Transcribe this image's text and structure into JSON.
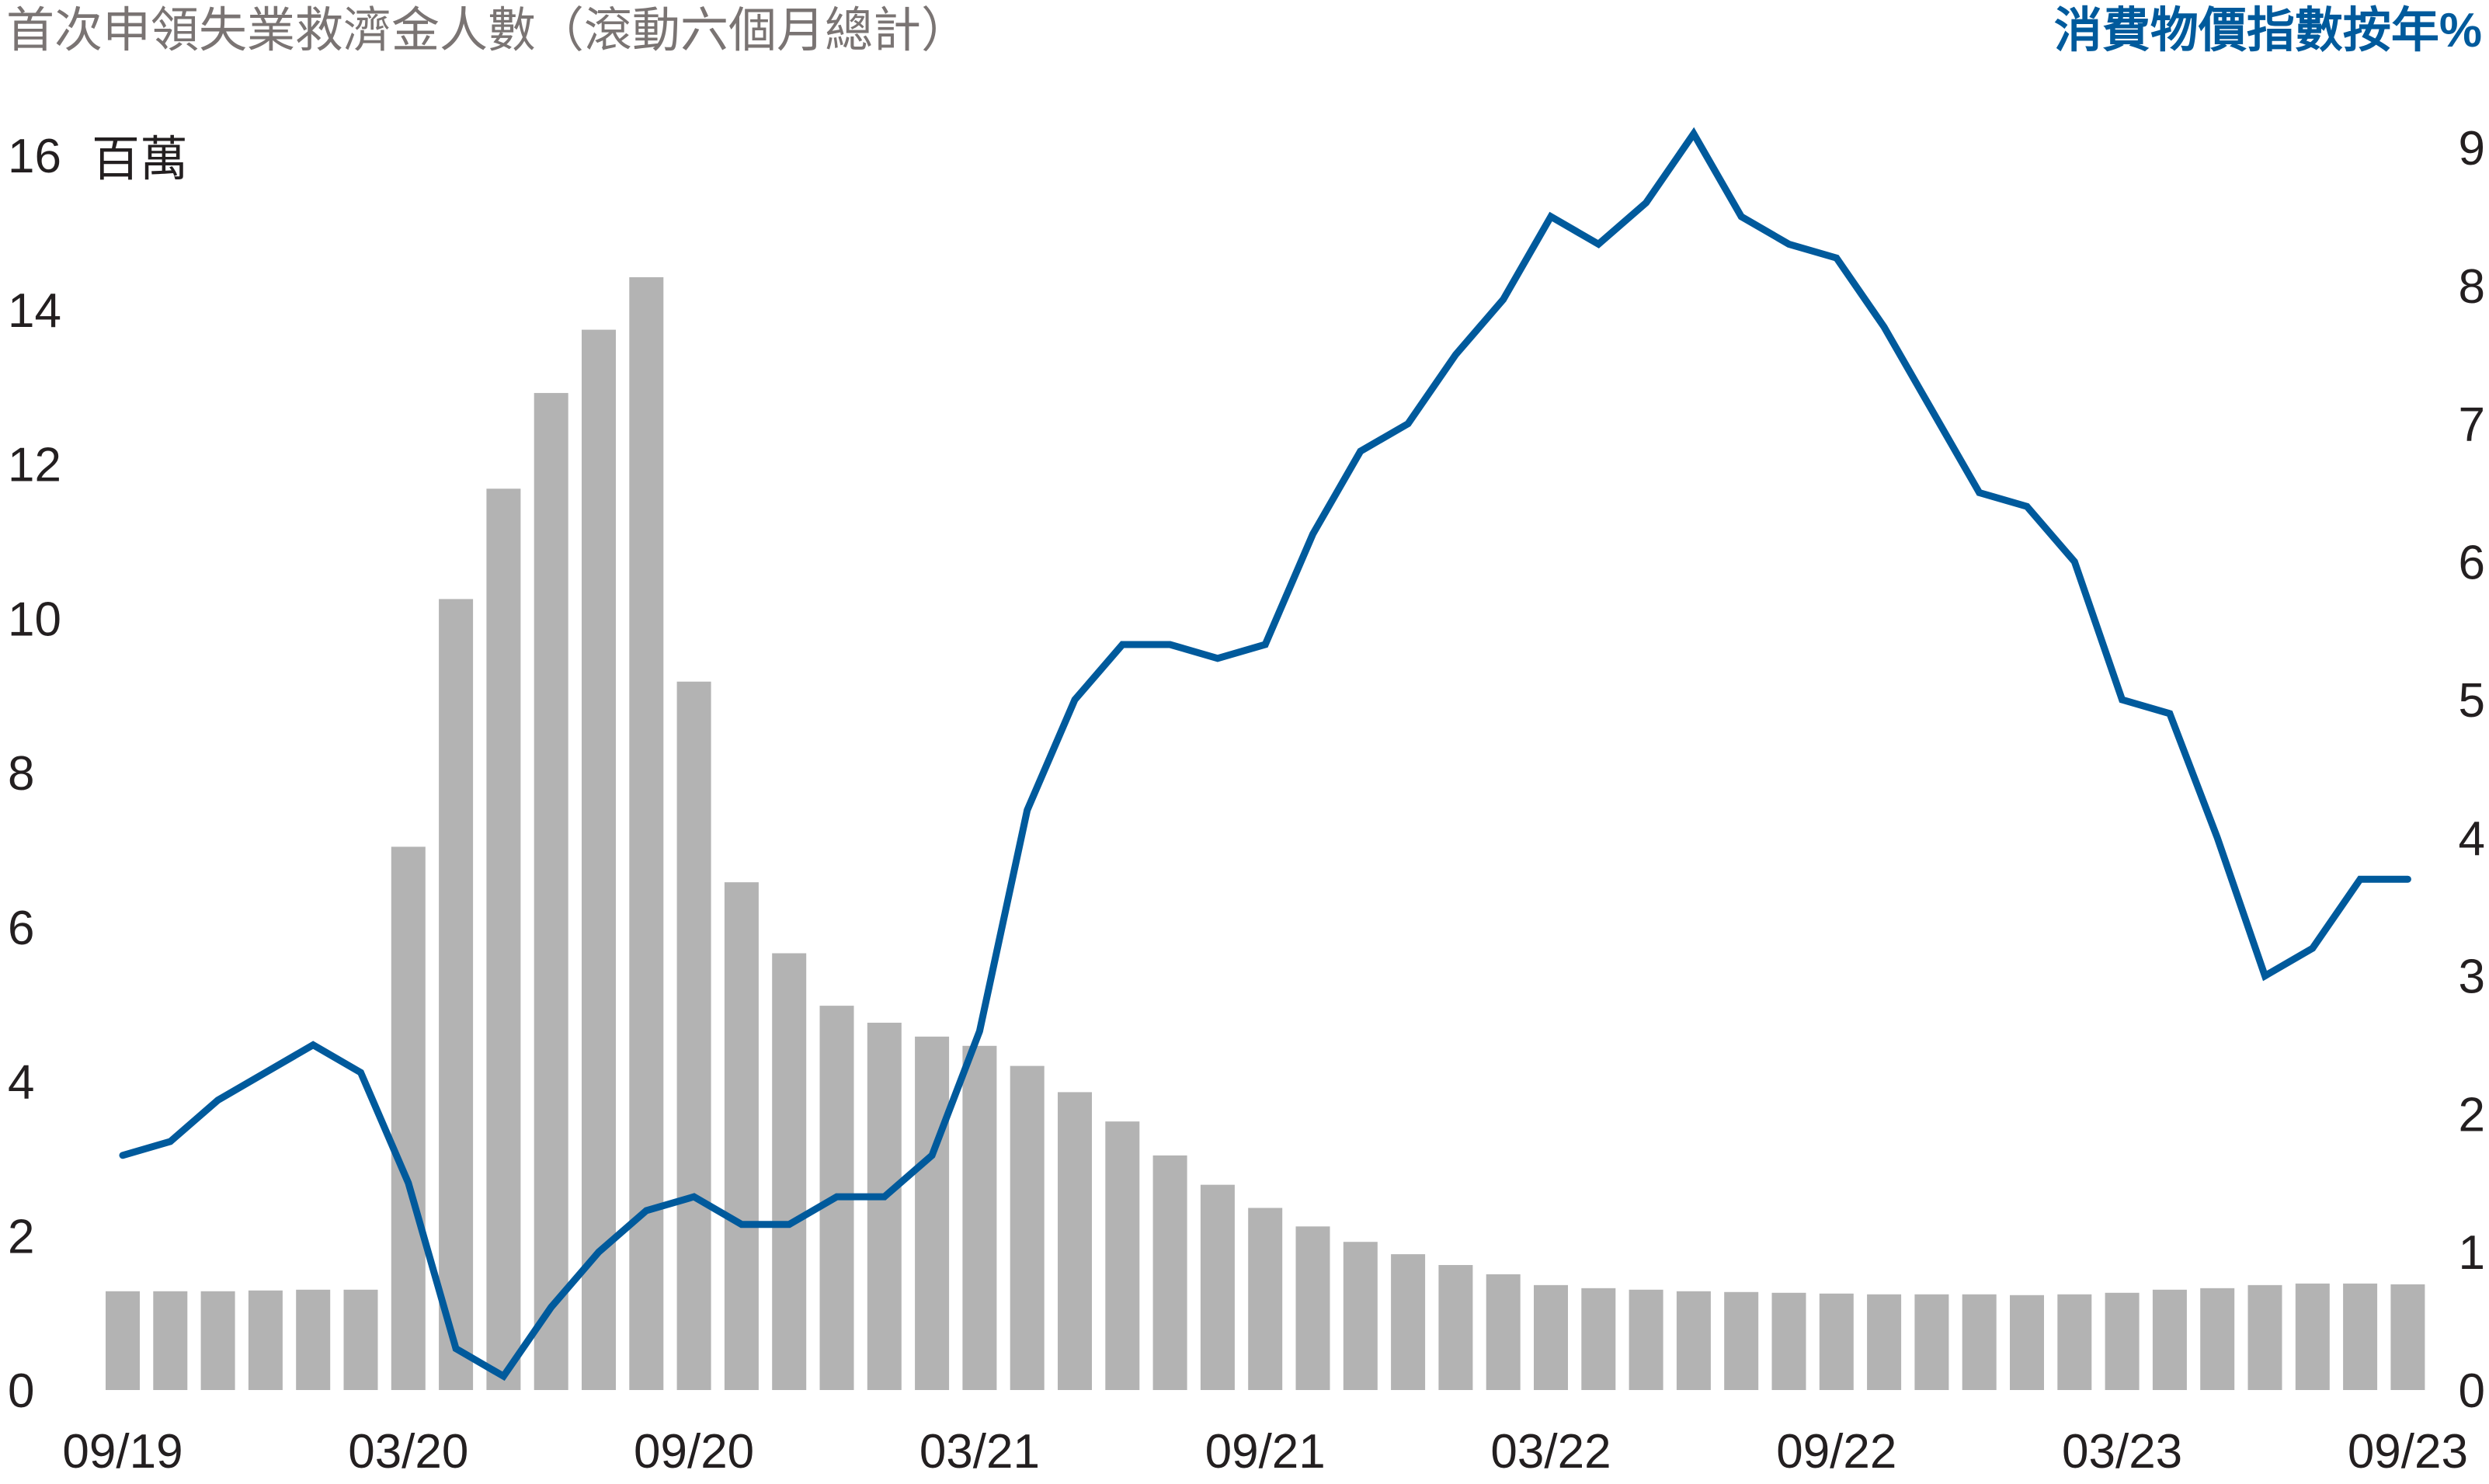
{
  "chart_data": {
    "type": "bar",
    "title_left": "首次申領失業救濟金人數（滾動六個月總計）",
    "title_right": "消費物價指數按年%",
    "left_axis": {
      "unit": "百萬",
      "ticks": [
        "0",
        "2",
        "4",
        "6",
        "8",
        "10",
        "12",
        "14",
        "16"
      ],
      "ylim": [
        0,
        16
      ]
    },
    "right_axis": {
      "ticks": [
        "0",
        "1",
        "2",
        "3",
        "4",
        "5",
        "6",
        "7",
        "8",
        "9"
      ],
      "ylim": [
        0,
        9
      ]
    },
    "x_tick_labels": [
      "09/19",
      "03/20",
      "09/20",
      "03/21",
      "09/21",
      "03/22",
      "09/22",
      "03/23",
      "09/23"
    ],
    "grid": false,
    "series": [
      {
        "kind": "bar",
        "axis": "left",
        "color": "#b3b3b3",
        "values": [
          1.28,
          1.28,
          1.28,
          1.29,
          1.3,
          1.3,
          7.04,
          10.25,
          11.68,
          12.92,
          13.74,
          14.42,
          9.18,
          6.58,
          5.66,
          4.98,
          4.76,
          4.58,
          4.46,
          4.2,
          3.86,
          3.48,
          3.04,
          2.66,
          2.36,
          2.12,
          1.92,
          1.76,
          1.62,
          1.5,
          1.36,
          1.32,
          1.3,
          1.28,
          1.27,
          1.26,
          1.25,
          1.24,
          1.24,
          1.24,
          1.23,
          1.24,
          1.26,
          1.3,
          1.32,
          1.36,
          1.38,
          1.38,
          1.37
        ]
      },
      {
        "kind": "line",
        "axis": "right",
        "color": "#005a9c",
        "values": [
          1.7,
          1.8,
          2.1,
          2.3,
          2.5,
          2.3,
          1.5,
          0.3,
          0.1,
          0.6,
          1.0,
          1.3,
          1.4,
          1.2,
          1.2,
          1.4,
          1.4,
          1.7,
          2.6,
          4.2,
          5.0,
          5.4,
          5.4,
          5.3,
          5.4,
          6.2,
          6.8,
          7.0,
          7.5,
          7.9,
          8.5,
          8.3,
          8.6,
          9.1,
          8.5,
          8.3,
          8.2,
          7.7,
          7.1,
          6.5,
          6.4,
          6.0,
          5.0,
          4.9,
          4.0,
          3.0,
          3.2,
          3.7,
          3.7
        ]
      }
    ]
  }
}
